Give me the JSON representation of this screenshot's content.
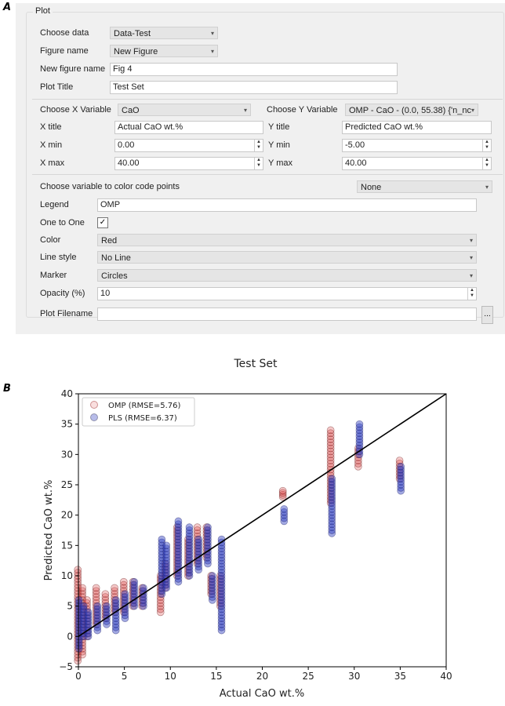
{
  "panel_labels": {
    "a": "A",
    "b": "B"
  },
  "form": {
    "group_title": "Plot",
    "choose_data": {
      "label": "Choose data",
      "value": "Data-Test"
    },
    "figure_name": {
      "label": "Figure name",
      "value": "New Figure"
    },
    "new_figure_name": {
      "label": "New figure name",
      "value": "Fig 4"
    },
    "plot_title": {
      "label": "Plot Title",
      "value": "Test Set"
    },
    "x_variable": {
      "label": "Choose X Variable",
      "value": "CaO"
    },
    "y_variable": {
      "label": "Choose Y Variable",
      "value": "OMP - CaO - (0.0, 55.38) {'n_nc"
    },
    "x_title": {
      "label": "X title",
      "value": "Actual CaO wt.%"
    },
    "y_title": {
      "label": "Y title",
      "value": "Predicted CaO wt.%"
    },
    "x_min": {
      "label": "X min",
      "value": "0.00"
    },
    "y_min": {
      "label": "Y min",
      "value": "-5.00"
    },
    "x_max": {
      "label": "X max",
      "value": "40.00"
    },
    "y_max": {
      "label": "Y max",
      "value": "40.00"
    },
    "color_code": {
      "label": "Choose variable to color code points",
      "value": "None"
    },
    "legend": {
      "label": "Legend",
      "value": "OMP"
    },
    "one_to_one": {
      "label": "One to One",
      "checked": true
    },
    "color": {
      "label": "Color",
      "value": "Red"
    },
    "line_style": {
      "label": "Line style",
      "value": "No Line"
    },
    "marker": {
      "label": "Marker",
      "value": "Circles"
    },
    "opacity": {
      "label": "Opacity (%)",
      "value": "10"
    },
    "plot_filename": {
      "label": "Plot Filename",
      "value": "",
      "browse": "..."
    }
  },
  "chart_data": {
    "type": "scatter",
    "title": "Test Set",
    "xlabel": "Actual CaO wt.%",
    "ylabel": "Predicted CaO wt.%",
    "xlim": [
      0,
      40
    ],
    "ylim": [
      -5,
      40
    ],
    "xticks": [
      "0",
      "5",
      "10",
      "15",
      "20",
      "25",
      "30",
      "35",
      "40"
    ],
    "yticks": [
      "−5",
      "0",
      "5",
      "10",
      "15",
      "20",
      "25",
      "30",
      "35",
      "40"
    ],
    "legend_position": "top-left",
    "one_to_one_line": true,
    "series": [
      {
        "name": "OMP (RMSE=5.76)",
        "color": "#d62728",
        "clusters": [
          [
            0,
            -4,
            11
          ],
          [
            0.5,
            -3,
            8
          ],
          [
            1,
            0,
            6
          ],
          [
            2,
            2,
            8
          ],
          [
            3,
            3,
            7
          ],
          [
            4,
            4,
            8
          ],
          [
            5,
            4,
            9
          ],
          [
            6,
            5,
            9
          ],
          [
            7,
            5,
            8
          ],
          [
            9,
            4,
            10
          ],
          [
            9.5,
            8,
            12
          ],
          [
            10.8,
            10,
            18
          ],
          [
            12,
            10,
            16
          ],
          [
            13,
            12,
            18
          ],
          [
            14,
            13,
            18
          ],
          [
            14.5,
            7,
            10
          ],
          [
            15.5,
            5,
            10
          ],
          [
            22.3,
            23,
            24
          ],
          [
            27.5,
            22,
            34
          ],
          [
            30.5,
            28,
            31
          ],
          [
            35,
            26,
            29
          ]
        ]
      },
      {
        "name": "PLS (RMSE=6.37)",
        "color": "#3040c0",
        "clusters": [
          [
            0,
            -2,
            6
          ],
          [
            0.5,
            0,
            5
          ],
          [
            1,
            0,
            4
          ],
          [
            2,
            1,
            5
          ],
          [
            3,
            2,
            5
          ],
          [
            4,
            1,
            6
          ],
          [
            5,
            3,
            7
          ],
          [
            6,
            5,
            9
          ],
          [
            7,
            5,
            8
          ],
          [
            9,
            7,
            16
          ],
          [
            9.5,
            8,
            15
          ],
          [
            10.8,
            9,
            19
          ],
          [
            12,
            10,
            18
          ],
          [
            13,
            11,
            16
          ],
          [
            14,
            12,
            18
          ],
          [
            14.5,
            6,
            10
          ],
          [
            15.5,
            1,
            16
          ],
          [
            22.3,
            19,
            21
          ],
          [
            27.5,
            17,
            26
          ],
          [
            30.5,
            30,
            35
          ],
          [
            35,
            24,
            28
          ]
        ]
      }
    ]
  }
}
